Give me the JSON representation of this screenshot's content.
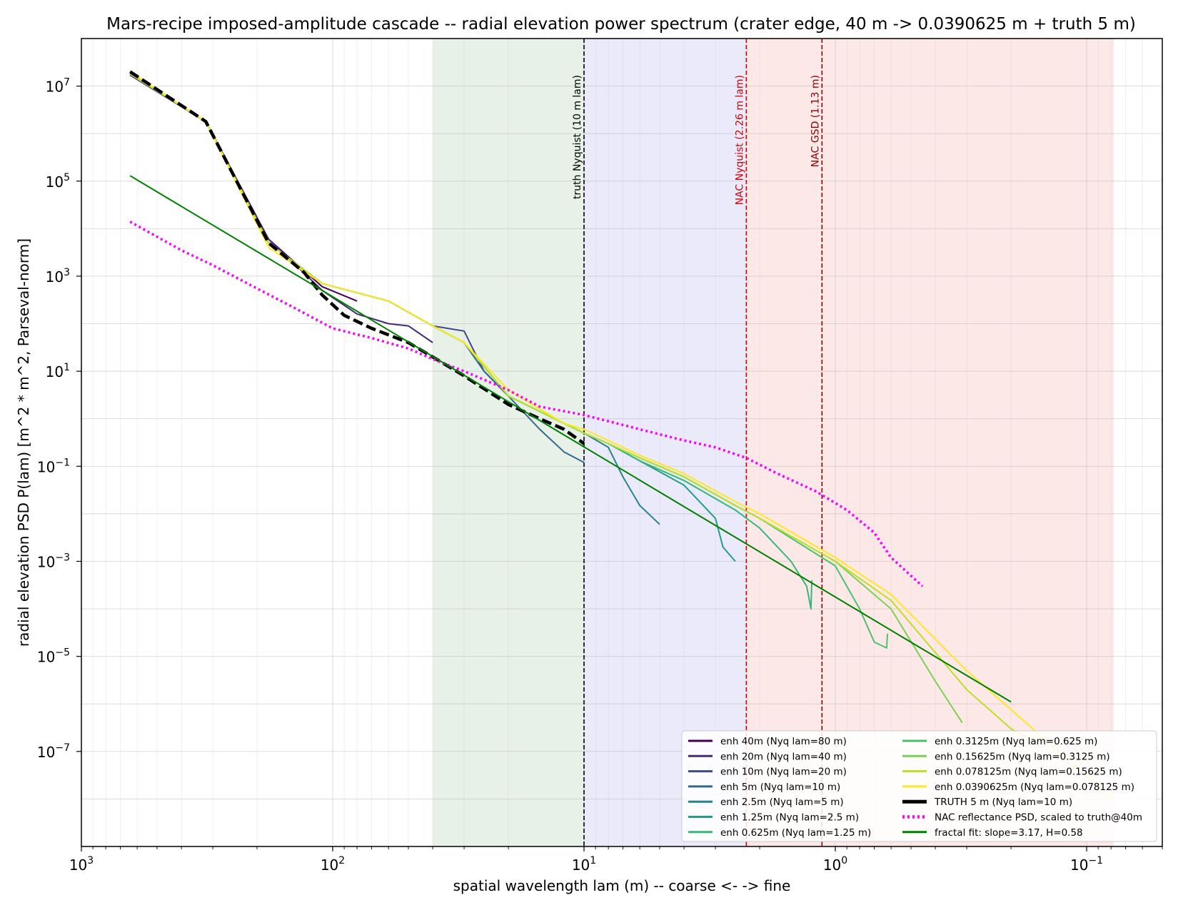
{
  "chart_data": {
    "type": "line",
    "title": "Mars-recipe imposed-amplitude cascade -- radial elevation power spectrum (crater edge, 40 m -> 0.0390625 m + truth 5 m)",
    "xlabel": "spatial wavelength lam (m) -- coarse <- -> fine",
    "ylabel": "radial elevation PSD  P(lam)  [m^2 * m^2, Parseval-norm]",
    "x_scale": "log",
    "x_reversed": true,
    "y_scale": "log",
    "xlim": [
      1000,
      0.05
    ],
    "ylim": [
      1e-09,
      100000000.0
    ],
    "grid": true,
    "legend_position": "lower right",
    "legend_columns": 2,
    "x_ticks": [
      {
        "value": 1000,
        "label_base": "10",
        "label_exp": "3"
      },
      {
        "value": 100,
        "label_base": "10",
        "label_exp": "2"
      },
      {
        "value": 10,
        "label_base": "10",
        "label_exp": "1"
      },
      {
        "value": 1,
        "label_base": "10",
        "label_exp": "0"
      },
      {
        "value": 0.1,
        "label_base": "10",
        "label_exp": "−1"
      }
    ],
    "y_ticks": [
      {
        "value": 10000000.0,
        "label_base": "10",
        "label_exp": "7"
      },
      {
        "value": 100000.0,
        "label_base": "10",
        "label_exp": "5"
      },
      {
        "value": 1000.0,
        "label_base": "10",
        "label_exp": "3"
      },
      {
        "value": 10,
        "label_base": "10",
        "label_exp": "1"
      },
      {
        "value": 0.1,
        "label_base": "10",
        "label_exp": "−1"
      },
      {
        "value": 0.001,
        "label_base": "10",
        "label_exp": "−3"
      },
      {
        "value": 1e-05,
        "label_base": "10",
        "label_exp": "−5"
      },
      {
        "value": 1e-07,
        "label_base": "10",
        "label_exp": "−7"
      }
    ],
    "bands": [
      {
        "from": 40,
        "to": 10,
        "color": "#e3efe3"
      },
      {
        "from": 10,
        "to": 2.26,
        "color": "#e6e6fa"
      },
      {
        "from": 2.26,
        "to": 0.078,
        "color": "#fbe5e3"
      }
    ],
    "vlines": [
      {
        "x": 10,
        "color": "#000000",
        "label": "truth Nyquist (10 m lam)"
      },
      {
        "x": 2.26,
        "color": "#d40000",
        "label": "NAC Nyquist (2.26 m lam)"
      },
      {
        "x": 1.13,
        "color": "#8b0000",
        "label": "NAC GSD (1.13 m)"
      }
    ],
    "series": [
      {
        "name": "enh 40m (Nyq lam=80 m)",
        "color": "#440154",
        "width": 2,
        "style": "solid",
        "x": [
          640,
          320,
          180,
          110,
          80
        ],
        "y": [
          17000000.0,
          1800000.0,
          6000,
          600,
          300
        ]
      },
      {
        "name": "enh 20m (Nyq lam=40 m)",
        "color": "#482878",
        "width": 2,
        "style": "solid",
        "x": [
          640,
          320,
          180,
          110,
          80,
          60,
          50,
          40
        ],
        "y": [
          17000000.0,
          1800000.0,
          6000,
          500,
          160,
          100,
          90,
          40
        ]
      },
      {
        "name": "enh 10m (Nyq lam=20 m)",
        "color": "#3e4989",
        "width": 2,
        "style": "solid",
        "x": [
          640,
          320,
          180,
          110,
          60,
          40,
          30,
          25,
          20
        ],
        "y": [
          18000000.0,
          1800000.0,
          5000,
          700,
          300,
          90,
          70,
          10,
          3
        ]
      },
      {
        "name": "enh 5m (Nyq lam=10 m)",
        "color": "#31688e",
        "width": 2,
        "style": "solid",
        "x": [
          640,
          320,
          180,
          110,
          60,
          40,
          30,
          25,
          20,
          15,
          12,
          10
        ],
        "y": [
          18000000.0,
          1800000.0,
          5000,
          700,
          300,
          90,
          40,
          10,
          3,
          0.6,
          0.2,
          0.12
        ]
      },
      {
        "name": "enh 2.5m (Nyq lam=5 m)",
        "color": "#26828e",
        "width": 2,
        "style": "solid",
        "x": [
          640,
          320,
          180,
          110,
          60,
          40,
          30,
          20,
          12,
          10,
          8,
          7,
          6,
          5
        ],
        "y": [
          18000000.0,
          1800000.0,
          5000,
          700,
          300,
          90,
          40,
          3,
          0.8,
          0.5,
          0.25,
          0.06,
          0.015,
          0.006
        ]
      },
      {
        "name": "enh 1.25m (Nyq lam=2.5 m)",
        "color": "#1f9e89",
        "width": 2,
        "style": "solid",
        "x": [
          640,
          320,
          180,
          110,
          60,
          40,
          30,
          20,
          12,
          10,
          8,
          6,
          4,
          3,
          2.8,
          2.5
        ],
        "y": [
          18000000.0,
          1800000.0,
          5000,
          700,
          300,
          90,
          40,
          3,
          0.8,
          0.5,
          0.3,
          0.13,
          0.04,
          0.008,
          0.002,
          0.001
        ]
      },
      {
        "name": "enh 0.625m (Nyq lam=1.25 m)",
        "color": "#35b779",
        "width": 2,
        "style": "solid",
        "x": [
          640,
          320,
          180,
          110,
          60,
          40,
          30,
          20,
          12,
          10,
          8,
          6,
          4,
          2.5,
          2,
          1.5,
          1.3,
          1.25,
          1.24
        ],
        "y": [
          18000000.0,
          1800000.0,
          5000,
          700,
          300,
          90,
          40,
          3,
          0.8,
          0.5,
          0.3,
          0.13,
          0.05,
          0.012,
          0.005,
          0.001,
          0.0003,
          0.0001,
          0.0004
        ]
      },
      {
        "name": "enh 0.3125m (Nyq lam=0.625 m)",
        "color": "#4ac16d",
        "width": 2,
        "style": "solid",
        "x": [
          640,
          320,
          180,
          110,
          60,
          40,
          30,
          20,
          12,
          10,
          8,
          6,
          4,
          2.5,
          2,
          1,
          0.8,
          0.7,
          0.625,
          0.62
        ],
        "y": [
          18000000.0,
          1800000.0,
          5000,
          700,
          300,
          90,
          40,
          3,
          0.8,
          0.5,
          0.3,
          0.15,
          0.06,
          0.015,
          0.008,
          0.0008,
          0.0001,
          2e-05,
          1.5e-05,
          3e-05
        ]
      },
      {
        "name": "enh 0.15625m (Nyq lam=0.3125 m)",
        "color": "#7ad151",
        "width": 2,
        "style": "solid",
        "x": [
          640,
          320,
          180,
          110,
          60,
          40,
          30,
          20,
          12,
          10,
          8,
          6,
          4,
          2.5,
          2,
          1,
          0.6,
          0.4,
          0.3125
        ],
        "y": [
          18000000.0,
          1800000.0,
          5000,
          700,
          300,
          90,
          40,
          3,
          0.8,
          0.5,
          0.3,
          0.15,
          0.06,
          0.015,
          0.008,
          0.001,
          0.0001,
          3e-06,
          4e-07
        ]
      },
      {
        "name": "enh 0.078125m (Nyq lam=0.15625 m)",
        "color": "#bddf26",
        "width": 2,
        "style": "solid",
        "x": [
          640,
          320,
          180,
          110,
          60,
          40,
          30,
          20,
          12,
          10,
          8,
          6,
          4,
          2.5,
          2,
          1,
          0.6,
          0.3,
          0.2,
          0.156
        ],
        "y": [
          18000000.0,
          1800000.0,
          5000,
          700,
          300,
          90,
          40,
          3,
          0.8,
          0.5,
          0.3,
          0.15,
          0.06,
          0.015,
          0.008,
          0.001,
          0.00015,
          2e-06,
          3e-07,
          1.5e-07
        ]
      },
      {
        "name": "enh 0.0390625m (Nyq lam=0.078125 m)",
        "color": "#fde725",
        "width": 2,
        "style": "solid",
        "x": [
          640,
          320,
          180,
          110,
          60,
          40,
          30,
          20,
          12,
          10,
          8,
          6,
          4,
          2.5,
          2,
          1,
          0.6,
          0.3,
          0.15,
          0.1,
          0.078
        ],
        "y": [
          20000000.0,
          1800000.0,
          4000,
          700,
          300,
          90,
          40,
          4,
          0.8,
          0.6,
          0.35,
          0.17,
          0.07,
          0.018,
          0.01,
          0.0012,
          0.0002,
          5e-06,
          2e-07,
          3e-08,
          1e-08
        ]
      },
      {
        "name": "TRUTH 5 m (Nyq lam=10 m)",
        "color": "#000000",
        "width": 4.5,
        "style": "dash",
        "x": [
          640,
          320,
          180,
          130,
          110,
          90,
          70,
          50,
          40,
          30,
          20,
          15,
          12,
          10
        ],
        "y": [
          20000000.0,
          1800000.0,
          5000,
          1200,
          400,
          150,
          80,
          40,
          20,
          8,
          2,
          1,
          0.6,
          0.3
        ]
      },
      {
        "name": "NAC reflectance PSD, scaled to truth@40m",
        "color": "#ff00ff",
        "width": 3.5,
        "style": "dot",
        "x": [
          640,
          400,
          300,
          200,
          150,
          100,
          70,
          50,
          40,
          30,
          20,
          15,
          10,
          6,
          4,
          3,
          2.26,
          1.7,
          1.2,
          0.9,
          0.7,
          0.6,
          0.45
        ],
        "y": [
          14000,
          3500,
          1700,
          550,
          250,
          80,
          50,
          30,
          18,
          10,
          4,
          1.8,
          1.2,
          0.6,
          0.35,
          0.25,
          0.15,
          0.07,
          0.03,
          0.012,
          0.004,
          0.0012,
          0.0003
        ]
      },
      {
        "name": "fractal fit: slope=3.17, H=0.58",
        "color": "#008000",
        "width": 2,
        "style": "solid",
        "x": [
          640,
          0.2
        ],
        "y": [
          130000,
          1.1e-06
        ]
      }
    ]
  }
}
